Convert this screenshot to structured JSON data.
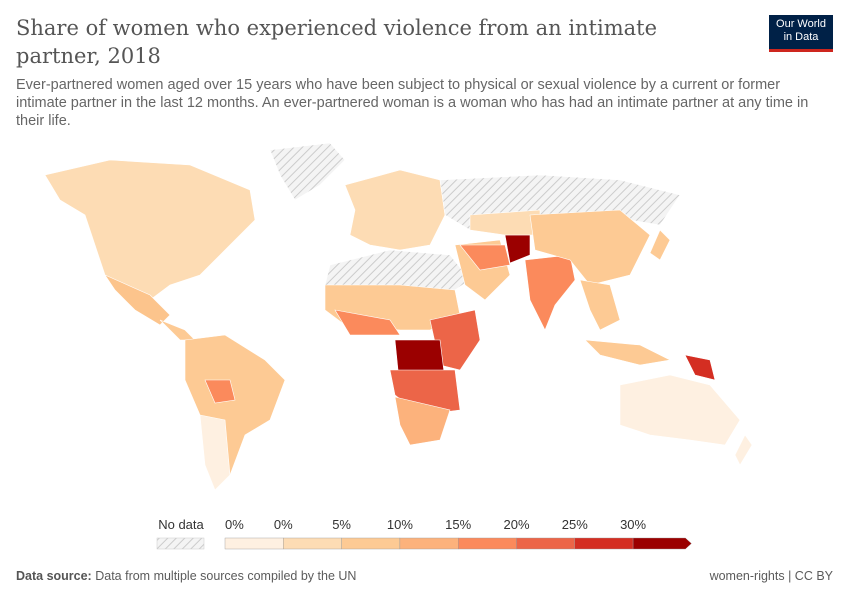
{
  "title": "Share of women who experienced violence from an intimate partner, 2018",
  "subtitle": "Ever-partnered women aged over 15 years who have been subject to physical or sexual violence by a current or former intimate partner in the last 12 months. An ever-partnered woman is a woman who has had an intimate partner at any time in their life.",
  "logo": {
    "line1": "Our World",
    "line2": "in Data"
  },
  "legend": {
    "no_data_label": "No data",
    "labels": [
      "0%",
      "0%",
      "5%",
      "10%",
      "15%",
      "20%",
      "25%",
      "30%"
    ],
    "colors": [
      "#fef0e1",
      "#fddcb4",
      "#fdca94",
      "#fcb27c",
      "#fb8a5c",
      "#ec6548",
      "#d42e22",
      "#9b0000"
    ],
    "no_data_color": "#eeeeee"
  },
  "footer": {
    "source_label": "Data source:",
    "source_text": "Data from multiple sources compiled by the UN",
    "right": "women-rights | CC BY"
  }
}
